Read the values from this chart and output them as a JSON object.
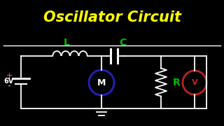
{
  "title": "Oscillator Circuit",
  "title_color": "#FFFF00",
  "bg_color": "#000000",
  "line_color": "#FFFFFF",
  "label_L": "L",
  "label_C": "C",
  "label_R": "R",
  "label_M": "M",
  "label_V": "V",
  "label_6V": "6V",
  "label_plus": "+",
  "label_minus": "-",
  "label_L_color": "#00BB00",
  "label_C_color": "#00BB00",
  "label_R_color": "#00BB00",
  "label_M_color": "#FFFFFF",
  "label_V_color": "#CC2222",
  "label_6V_color": "#FFFFFF",
  "battery_plus_color": "#FF3333",
  "battery_minus_color": "#8888FF",
  "circle_M_color": "#2222BB",
  "circle_V_color": "#BB2222",
  "title_fontsize": 15,
  "lw": 1.3
}
